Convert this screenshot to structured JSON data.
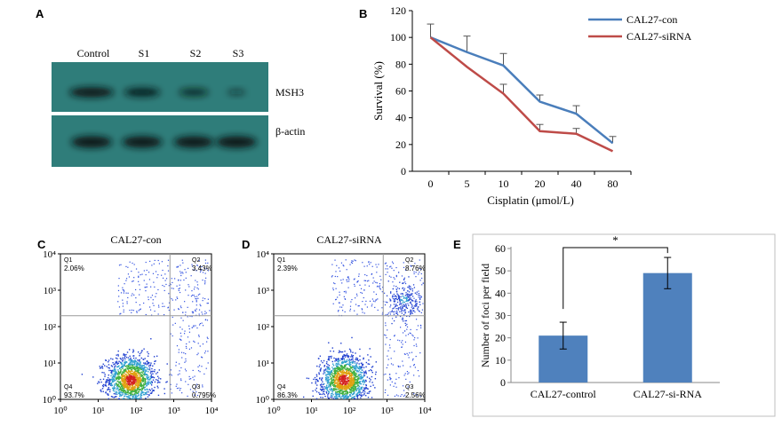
{
  "chart_data": [
    {
      "panel": "A",
      "type": "other",
      "lane_labels": [
        "Control",
        "S1",
        "S2",
        "S3"
      ],
      "row_labels": [
        "MSH3",
        "β-actin"
      ],
      "band_intensity": {
        "MSH3": [
          1.0,
          0.8,
          0.6,
          0.25
        ],
        "β-actin": [
          1.0,
          0.95,
          0.95,
          1.0
        ]
      }
    },
    {
      "panel": "B",
      "type": "line",
      "x": [
        "0",
        "5",
        "10",
        "20",
        "40",
        "80"
      ],
      "xlabel": "Cisplatin (μmol/L)",
      "ylabel": "Survival (%)",
      "ylim": [
        0,
        120
      ],
      "yticks": [
        0,
        20,
        40,
        60,
        80,
        100,
        120
      ],
      "series": [
        {
          "name": "CAL27-con",
          "color": "#4a7ebb",
          "values": [
            100,
            89,
            79,
            52,
            43,
            21
          ],
          "errors": [
            10,
            12,
            9,
            5,
            6,
            5
          ]
        },
        {
          "name": "CAL27-siRNA",
          "color": "#be4b48",
          "values": [
            100,
            78,
            58,
            30,
            28,
            15
          ],
          "errors": [
            0,
            0,
            7,
            5,
            4,
            0
          ]
        }
      ],
      "legend_position": "top-right"
    },
    {
      "panel": "C",
      "type": "scatter",
      "title": "CAL27-con",
      "x_tick_labels": [
        "10⁰",
        "10¹",
        "10²",
        "10³",
        "10⁴"
      ],
      "y_tick_labels": [
        "10⁰",
        "10¹",
        "10²",
        "10³",
        "10⁴"
      ],
      "gate_x": 2.9,
      "gate_y": 2.3,
      "quadrants": [
        {
          "name": "Q1",
          "value": "2.06%"
        },
        {
          "name": "Q2",
          "value": "3.43%"
        },
        {
          "name": "Q3",
          "value": "0.795%"
        },
        {
          "name": "Q4",
          "value": "93.7%"
        }
      ]
    },
    {
      "panel": "D",
      "type": "scatter",
      "title": "CAL27-siRNA",
      "x_tick_labels": [
        "10⁰",
        "10¹",
        "10²",
        "10³",
        "10⁴"
      ],
      "y_tick_labels": [
        "10⁰",
        "10¹",
        "10²",
        "10³",
        "10⁴"
      ],
      "gate_x": 2.9,
      "gate_y": 2.3,
      "quadrants": [
        {
          "name": "Q1",
          "value": "2.39%"
        },
        {
          "name": "Q2",
          "value": "8.76%"
        },
        {
          "name": "Q3",
          "value": "2.56%"
        },
        {
          "name": "Q4",
          "value": "86.3%"
        }
      ]
    },
    {
      "panel": "E",
      "type": "bar",
      "categories": [
        "CAL27-control",
        "CAL27-si-RNA"
      ],
      "values": [
        21,
        49
      ],
      "errors": [
        6,
        7
      ],
      "ylabel": "Number of foci per field",
      "ylim": [
        0,
        60
      ],
      "yticks": [
        0,
        10,
        20,
        30,
        40,
        50,
        60
      ],
      "bar_color": "#4f81bd",
      "significance": "*"
    }
  ],
  "panel_labels": {
    "a": "A",
    "b": "B",
    "c": "C",
    "d": "D",
    "e": "E"
  }
}
